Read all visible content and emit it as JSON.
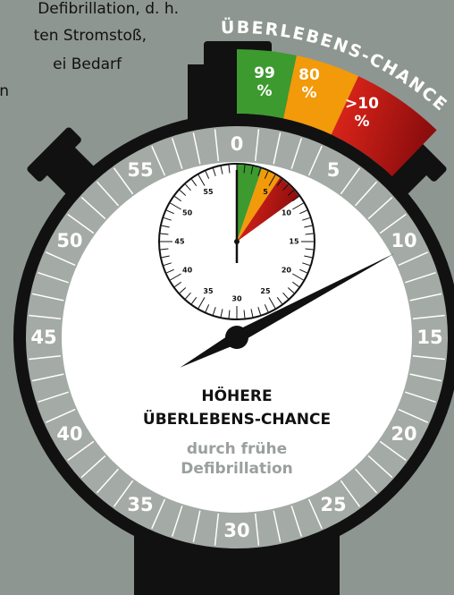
{
  "intro_text": [
    "Defibrillation, d. h.",
    "ten Stromstoß,",
    "ei Bedarf",
    "n"
  ],
  "arc_title": "ÜBERLEBENS-CHANCE",
  "chances": [
    {
      "number": "99",
      "unit": "%"
    },
    {
      "number": "80",
      "unit": "%"
    },
    {
      "number": ">10",
      "unit": "%"
    }
  ],
  "dial_labels": [
    "0",
    "5",
    "10",
    "15",
    "20",
    "25",
    "30",
    "35",
    "40",
    "45",
    "50",
    "55"
  ],
  "subdial_labels": [
    "5",
    "10",
    "15",
    "20",
    "25",
    "30",
    "35",
    "40",
    "45",
    "50",
    "55"
  ],
  "center_text": {
    "heading": [
      "HÖHERE",
      "ÜBERLEBENS-CHANCE"
    ],
    "subheading": [
      "durch frühe",
      "Defibrillation"
    ]
  }
}
